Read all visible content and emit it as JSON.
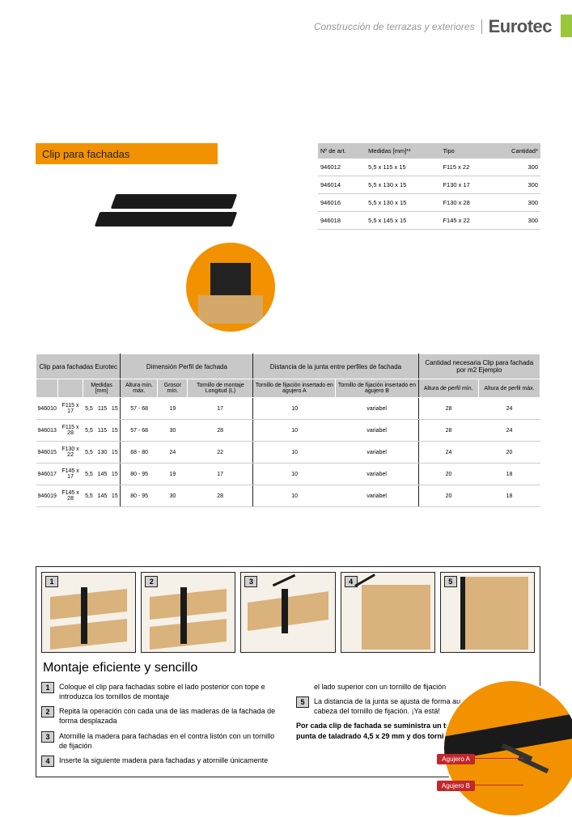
{
  "header": {
    "category": "Construcción de terrazas y exteriores",
    "brand": "Eurotec"
  },
  "title": "Clip para fachadas",
  "table1": {
    "headers": [
      "Nº de art.",
      "Medidas [mm]*¹",
      "Tipo",
      "Cantidad*"
    ],
    "rows": [
      [
        "946012",
        "5,5 x 115 x 15",
        "F115 x 22",
        "300"
      ],
      [
        "946014",
        "5,5 x 130 x 15",
        "F130 x 17",
        "300"
      ],
      [
        "946016",
        "5,5 x 130 x 15",
        "F130 x 28",
        "300"
      ],
      [
        "946018",
        "5,5 x 145 x 15",
        "F145 x 22",
        "300"
      ]
    ]
  },
  "table2": {
    "group_headers": [
      "Clip para fachadas Eurotec",
      "Dimensión Perfil de fachada",
      "Distancia de la junta entre perfiles de fachada",
      "Cantidad necesaria Clip para fachada por m2 Ejemplo"
    ],
    "sub_headers": [
      "",
      "",
      "Medidas [mm]",
      "",
      "",
      "Altura mín. máx.",
      "Grosor mín.",
      "Tornillo de montaje Longitud (L)",
      "Tornillo de fijación insertado en agujero A",
      "Tornillo de fijación insertado en agujero B",
      "Altura de perfil mín.",
      "Altura de perfil máx."
    ],
    "rows": [
      [
        "946010",
        "F115 x 17",
        "5,5",
        "115",
        "15",
        "57 - 68",
        "19",
        "17",
        "10",
        "variabel",
        "28",
        "24"
      ],
      [
        "946013",
        "F115 x 28",
        "5,5",
        "115",
        "15",
        "57 - 68",
        "30",
        "28",
        "10",
        "variabel",
        "28",
        "24"
      ],
      [
        "946015",
        "F130 x 22",
        "5,5",
        "130",
        "15",
        "68 - 80",
        "24",
        "22",
        "10",
        "variabel",
        "24",
        "20"
      ],
      [
        "946017",
        "F145 x 17",
        "5,5",
        "145",
        "15",
        "80 - 95",
        "19",
        "17",
        "10",
        "variabel",
        "20",
        "18"
      ],
      [
        "946019",
        "F145 x 28",
        "5,5",
        "145",
        "15",
        "80 - 95",
        "30",
        "28",
        "10",
        "variabel",
        "20",
        "18"
      ]
    ]
  },
  "montage": {
    "title": "Montaje eficiente y sencillo",
    "steps": [
      "Coloque el clip para fachadas sobre el lado posterior con tope e introduzca los tornillos de montaje",
      "Repita la operación con cada una de las maderas de la fachada de forma desplazada",
      "Atornille la madera para fachadas en el contra listón con un tornillo de fijación",
      "Inserte la siguiente madera para fachadas y atornille únicamente",
      "el lado superior con un tornillo de fijación",
      "La distancia de la junta se ajusta de forma au tomática mediante la cabeza del tornillo de fijación. ¡Ya está!"
    ],
    "supply_note": "Por cada clip de fachada se suministra un tornillo de fijación con punta de taladrado 4,5 x 29 mm y dos tornillos de montaje 4,2 x L.",
    "label_a": "Agujero A",
    "label_b": "Agujero B"
  }
}
